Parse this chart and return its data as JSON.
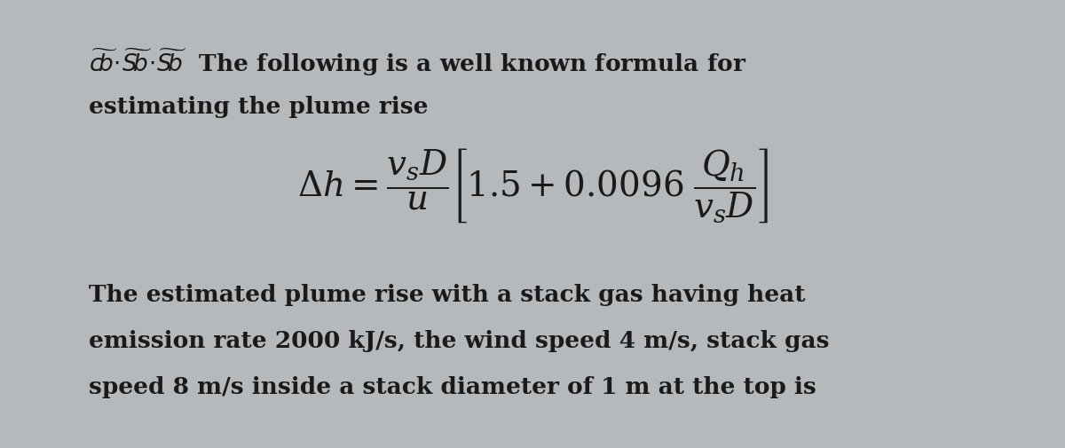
{
  "background_color": "#b5b9bc",
  "text_color": "#1a1a1a",
  "fig_width": 12.0,
  "fig_height": 5.06,
  "dpi": 100,
  "line1_prefix": "The following is a well known formula for",
  "line2": "estimating the plume rise",
  "line3": "The estimated plume rise with a stack gas having heat",
  "line4": "emission rate 2000 kJ/s, the wind speed 4 m/s, stack gas",
  "line5": "speed 8 m/s inside a stack diameter of 1 m at the top is",
  "font_size_text": 19,
  "font_size_formula": 22
}
